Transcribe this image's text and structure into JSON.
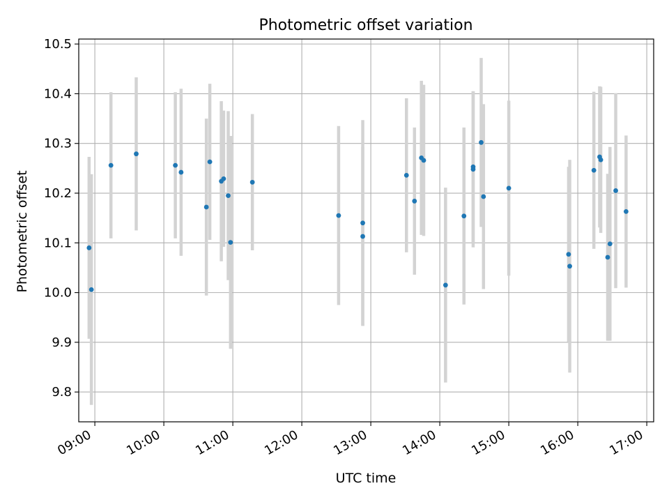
{
  "chart_data": {
    "type": "scatter",
    "title": "Photometric offset variation",
    "xlabel": "UTC time",
    "ylabel": "Photometric offset",
    "xlim": [
      "08:46",
      "17:06"
    ],
    "ylim": [
      9.74,
      10.51
    ],
    "x_ticks": [
      "09:00",
      "10:00",
      "11:00",
      "12:00",
      "13:00",
      "14:00",
      "15:00",
      "16:00",
      "17:00"
    ],
    "y_ticks": [
      "9.8",
      "9.9",
      "10.0",
      "10.1",
      "10.2",
      "10.3",
      "10.4",
      "10.5"
    ],
    "grid": true,
    "legend": "none",
    "point_color": "#1f77b4",
    "errorbar_color": "#d3d3d3",
    "points": [
      {
        "x": "08:55",
        "y": 10.09,
        "err": 0.183
      },
      {
        "x": "08:57",
        "y": 10.006,
        "err": 0.232
      },
      {
        "x": "09:14",
        "y": 10.256,
        "err": 0.147
      },
      {
        "x": "09:36",
        "y": 10.279,
        "err": 0.154
      },
      {
        "x": "10:10",
        "y": 10.256,
        "err": 0.147
      },
      {
        "x": "10:15",
        "y": 10.242,
        "err": 0.168
      },
      {
        "x": "10:37",
        "y": 10.172,
        "err": 0.178
      },
      {
        "x": "10:40",
        "y": 10.263,
        "err": 0.157
      },
      {
        "x": "10:50",
        "y": 10.224,
        "err": 0.161
      },
      {
        "x": "10:52",
        "y": 10.229,
        "err": 0.137
      },
      {
        "x": "10:56",
        "y": 10.195,
        "err": 0.17
      },
      {
        "x": "10:58",
        "y": 10.101,
        "err": 0.214
      },
      {
        "x": "11:17",
        "y": 10.222,
        "err": 0.137
      },
      {
        "x": "12:32",
        "y": 10.155,
        "err": 0.18
      },
      {
        "x": "12:53",
        "y": 10.14,
        "err": 0.207
      },
      {
        "x": "12:53",
        "y": 10.113,
        "err": 0.18
      },
      {
        "x": "13:31",
        "y": 10.236,
        "err": 0.155
      },
      {
        "x": "13:38",
        "y": 10.184,
        "err": 0.148
      },
      {
        "x": "13:44",
        "y": 10.271,
        "err": 0.155
      },
      {
        "x": "13:46",
        "y": 10.266,
        "err": 0.152
      },
      {
        "x": "14:05",
        "y": 10.015,
        "err": 0.196
      },
      {
        "x": "14:21",
        "y": 10.154,
        "err": 0.178
      },
      {
        "x": "14:29",
        "y": 10.248,
        "err": 0.157
      },
      {
        "x": "14:29",
        "y": 10.253,
        "err": 0.152
      },
      {
        "x": "14:36",
        "y": 10.302,
        "err": 0.17
      },
      {
        "x": "14:38",
        "y": 10.193,
        "err": 0.186
      },
      {
        "x": "15:00",
        "y": 10.21,
        "err": 0.176
      },
      {
        "x": "15:52",
        "y": 10.077,
        "err": 0.176
      },
      {
        "x": "15:53",
        "y": 10.053,
        "err": 0.214
      },
      {
        "x": "16:14",
        "y": 10.246,
        "err": 0.158
      },
      {
        "x": "16:19",
        "y": 10.273,
        "err": 0.142
      },
      {
        "x": "16:20",
        "y": 10.267,
        "err": 0.147
      },
      {
        "x": "16:26",
        "y": 10.071,
        "err": 0.168
      },
      {
        "x": "16:28",
        "y": 10.098,
        "err": 0.195
      },
      {
        "x": "16:33",
        "y": 10.205,
        "err": 0.196
      },
      {
        "x": "16:42",
        "y": 10.163,
        "err": 0.153
      }
    ]
  }
}
